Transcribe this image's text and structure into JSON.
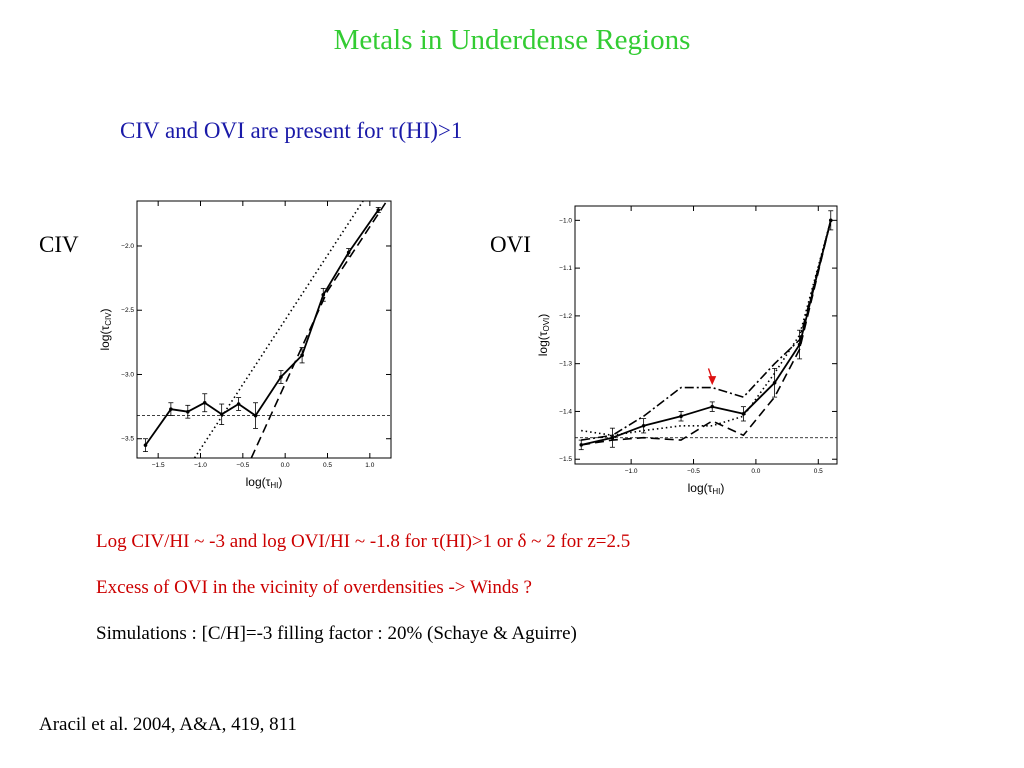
{
  "slide": {
    "title": "Metals in Underdense Regions",
    "subtitle": "CIV and OVI are present for τ(HI)>1",
    "label_civ": "CIV",
    "label_ovi": "OVI",
    "bullets": [
      "Log CIV/HI ~ -3 and log OVI/HI ~ -1.8 for τ(HI)>1 or δ ~ 2 for z=2.5",
      "Excess of OVI in the vicinity of overdensities -> Winds ?",
      "Simulations : [C/H]=-3 filling factor : 20% (Schaye & Aguirre)"
    ],
    "reference": "Aracil et al. 2004, A&A, 419, 811",
    "colors": {
      "title": "#33cc33",
      "subtitle": "#1a1aa8",
      "highlight": "#cc0000",
      "arrow": "#dd1111"
    }
  },
  "chart_data": [
    {
      "type": "line",
      "panel": "CIV",
      "xlabel_main": "log(τ",
      "xlabel_sub": "HI",
      "xlabel_close": ")",
      "ylabel_main": "log(τ",
      "ylabel_sub": "CIV",
      "ylabel_close": ")",
      "xlim": [
        -1.75,
        1.25
      ],
      "ylim": [
        -3.65,
        -1.65
      ],
      "xticks": [
        -1.5,
        -1.0,
        -0.5,
        0.0,
        0.5,
        1.0
      ],
      "xtick_labels": [
        "−1.5",
        "−1.0",
        "−0.5",
        "0.0",
        "0.5",
        "1.0"
      ],
      "yticks": [
        -3.5,
        -3.0,
        -2.5,
        -2.0
      ],
      "ytick_labels": [
        "−3.5",
        "−3.0",
        "−2.5",
        "−2.0"
      ],
      "series": [
        {
          "style": "solid-with-errorbars",
          "x": [
            -1.65,
            -1.35,
            -1.15,
            -0.95,
            -0.75,
            -0.55,
            -0.35,
            -0.05,
            0.2,
            0.45,
            0.75,
            1.1
          ],
          "y": [
            -3.55,
            -3.27,
            -3.29,
            -3.22,
            -3.31,
            -3.23,
            -3.32,
            -3.02,
            -2.85,
            -2.38,
            -2.05,
            -1.72
          ],
          "err": [
            0.05,
            0.05,
            0.05,
            0.07,
            0.08,
            0.05,
            0.1,
            0.05,
            0.06,
            0.05,
            0.03,
            0.02
          ]
        },
        {
          "style": "dashed",
          "x": [
            -0.4,
            0.5,
            1.2
          ],
          "y": [
            -3.65,
            -2.35,
            -1.65
          ]
        },
        {
          "style": "dotted",
          "x": [
            -1.07,
            0.92
          ],
          "y": [
            -3.65,
            -1.65
          ]
        },
        {
          "style": "horizontal-reference",
          "y": -3.32
        }
      ]
    },
    {
      "type": "line",
      "panel": "OVI",
      "xlabel_main": "log(τ",
      "xlabel_sub": "HI",
      "xlabel_close": ")",
      "ylabel_main": "log(τ",
      "ylabel_sub": "OVI",
      "ylabel_close": ")",
      "xlim": [
        -1.45,
        0.65
      ],
      "ylim": [
        -1.51,
        -0.97
      ],
      "xticks": [
        -1.0,
        -0.5,
        0.0,
        0.5
      ],
      "xtick_labels": [
        "−1.0",
        "−0.5",
        "0.0",
        "0.5"
      ],
      "yticks": [
        -1.5,
        -1.4,
        -1.3,
        -1.2,
        -1.1,
        -1.0
      ],
      "ytick_labels": [
        "−1.5",
        "−1.4",
        "−1.3",
        "−1.2",
        "−1.1",
        "−1.0"
      ],
      "series": [
        {
          "style": "solid-with-errorbars",
          "x": [
            -1.4,
            -1.15,
            -0.9,
            -0.6,
            -0.35,
            -0.1,
            0.15,
            0.35,
            0.6
          ],
          "y": [
            -1.47,
            -1.455,
            -1.43,
            -1.41,
            -1.39,
            -1.405,
            -1.34,
            -1.26,
            -1.0
          ],
          "err": [
            0.01,
            0.02,
            0.015,
            0.01,
            0.01,
            0.015,
            0.03,
            0.03,
            0.02
          ]
        },
        {
          "style": "dash-dot",
          "x": [
            -1.4,
            -1.15,
            -0.9,
            -0.6,
            -0.35,
            -0.1,
            0.15,
            0.35,
            0.6
          ],
          "y": [
            -1.46,
            -1.45,
            -1.41,
            -1.35,
            -1.35,
            -1.37,
            -1.3,
            -1.25,
            -1.0
          ]
        },
        {
          "style": "dashed",
          "x": [
            -1.4,
            -1.15,
            -0.9,
            -0.6,
            -0.35,
            -0.1,
            0.15,
            0.35,
            0.6
          ],
          "y": [
            -1.47,
            -1.46,
            -1.455,
            -1.46,
            -1.42,
            -1.45,
            -1.37,
            -1.27,
            -1.0
          ]
        },
        {
          "style": "dotted",
          "x": [
            -1.4,
            -1.15,
            -0.9,
            -0.6,
            -0.35,
            -0.1,
            0.15,
            0.35,
            0.6
          ],
          "y": [
            -1.44,
            -1.45,
            -1.44,
            -1.43,
            -1.43,
            -1.41,
            -1.32,
            -1.24,
            -1.0
          ]
        },
        {
          "style": "horizontal-reference",
          "y": -1.455
        }
      ],
      "annotation": {
        "type": "arrow",
        "x_from": -0.38,
        "y_from": -1.31,
        "x_to": -0.35,
        "y_to": -1.345
      }
    }
  ]
}
